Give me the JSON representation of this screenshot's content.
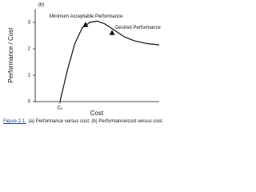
{
  "chart_data": {
    "type": "line",
    "panel_label": "(b)",
    "xlabel": "Cost",
    "ylabel": "Performance / Cost",
    "xlim": [
      0,
      5
    ],
    "xticks": [
      {
        "value": 1,
        "label": "C₀"
      }
    ],
    "ylim": [
      0,
      3.5
    ],
    "yticks": [
      0,
      1,
      2,
      3
    ],
    "x": [
      1,
      1.3,
      1.6,
      1.9,
      2.2,
      2.5,
      2.8,
      3.2,
      3.6,
      4.0,
      4.5,
      5
    ],
    "series": [
      {
        "name": "Performance / Cost",
        "color": "#111",
        "values": [
          0,
          1.2,
          2.2,
          2.8,
          3.0,
          3.05,
          2.95,
          2.7,
          2.45,
          2.3,
          2.2,
          2.15
        ]
      }
    ],
    "markers": [
      {
        "label": "Minimum Acceptable Performance",
        "x": 2.03,
        "y": 2.9
      },
      {
        "label": "Desired Performance",
        "x": 3.1,
        "y": 2.6
      }
    ]
  },
  "caption": {
    "number": "Figure 2.1.",
    "text": "(a) Performance versus cost. (b) Performance/cost versus cost."
  }
}
